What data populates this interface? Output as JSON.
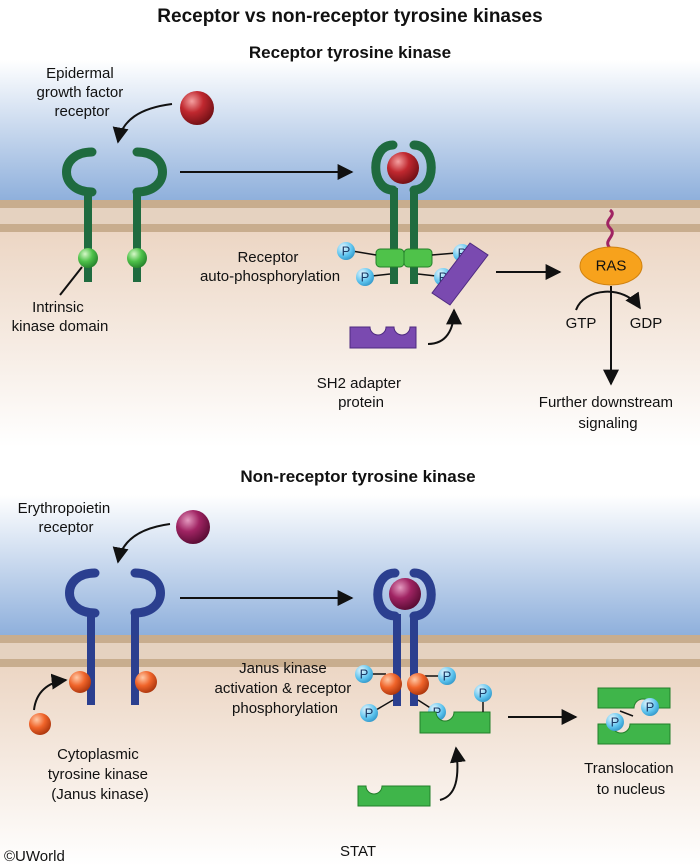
{
  "title": "Receptor vs non-receptor tyrosine kinases",
  "top": {
    "heading": "Receptor tyrosine kinase",
    "receptor_label": [
      "Epidermal",
      "growth factor",
      "receptor"
    ],
    "kinase_domain_label": [
      "Intrinsic",
      "kinase domain"
    ],
    "autophos_label": [
      "Receptor",
      "auto-phosphorylation"
    ],
    "adapter_label": [
      "SH2 adapter",
      "protein"
    ],
    "ras_label": "RAS",
    "gtp_label": "GTP",
    "gdp_label": "GDP",
    "downstream_label": [
      "Further downstream",
      "signaling"
    ]
  },
  "bottom": {
    "heading": "Non-receptor tyrosine kinase",
    "receptor_label": [
      "Erythropoietin",
      "receptor"
    ],
    "kinase_label": [
      "Cytoplasmic",
      "tyrosine kinase",
      "(Janus kinase)"
    ],
    "jak_label": [
      "Janus kinase",
      "activation & receptor",
      "phosphorylation"
    ],
    "stat_label": "STAT",
    "translocation_label": [
      "Translocation",
      "to nucleus"
    ]
  },
  "phosphate_label": "P",
  "copyright": "©UWorld",
  "colors": {
    "sky_top": "#8fb0dc",
    "membrane": "#c4a989",
    "cytoplasm": "#f1e3d6",
    "egfr": "#1f6b3f",
    "kinase_green": "#4fc24a",
    "epo_receptor": "#2b3f8f",
    "jak_orange": "#f0642a",
    "ligand_red": "#c0282f",
    "ligand_purple": "#a02463",
    "adapter_purple": "#7a4ab0",
    "stat_green": "#3fb54a",
    "ras_orange": "#f7a21c",
    "phosphate": "#5cc3ee"
  }
}
